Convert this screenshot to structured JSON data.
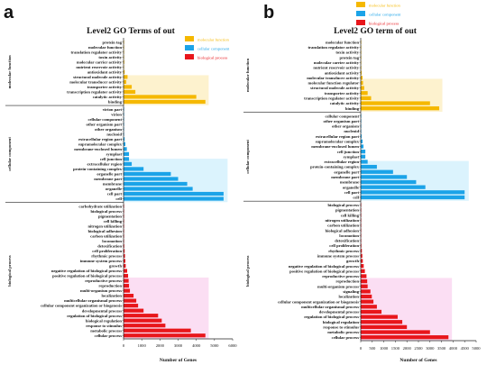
{
  "figure": {
    "panel_labels": [
      "a",
      "b"
    ]
  },
  "chart_data": [
    {
      "type": "bar",
      "orientation": "horizontal",
      "title": "Level2 GO Terms of out",
      "xlabel": "Number of Genes",
      "xlim": [
        0,
        6000
      ],
      "xticks": [
        0,
        1000,
        2000,
        3000,
        4000,
        5000,
        6000
      ],
      "legend": {
        "placement": "top-right"
      },
      "series_colors": {
        "molecular function": "#f5b800",
        "cellular component": "#1ba3e8",
        "biological process": "#e8161b"
      },
      "groups": [
        {
          "name": "molecular function",
          "label": "molecular function",
          "color": "#f5b800",
          "highlight": "#fbe7a6",
          "categories": [
            "protein tag",
            "molecular function",
            "translation regulator activity",
            "toxin activity",
            "molecular carrier activity",
            "nutrient reservoir activity",
            "antioxidant activity",
            "structural molecule activity",
            "molecular transducer activity",
            "transporter activity",
            "transcription regulator activity",
            "catalytic activity",
            "binding"
          ],
          "values": [
            5,
            10,
            15,
            20,
            40,
            25,
            60,
            220,
            150,
            450,
            650,
            4000,
            4500
          ]
        },
        {
          "name": "cellular component",
          "label": "cellular component",
          "color": "#1ba3e8",
          "highlight": "#bde9fb",
          "categories": [
            "virion part",
            "virion",
            "cellular component",
            "other organism part",
            "other organism",
            "nucleoid",
            "extracellular region part",
            "supramolecular complex",
            "membrane-enclosed lumen",
            "symplast",
            "cell junction",
            "extracellular region",
            "protein-containing complex",
            "organelle part",
            "membrane part",
            "membrane",
            "organelle",
            "cell part",
            "cell"
          ],
          "values": [
            5,
            8,
            10,
            10,
            12,
            20,
            60,
            100,
            180,
            300,
            300,
            450,
            1100,
            2600,
            3000,
            3500,
            3800,
            5500,
            5500
          ]
        },
        {
          "name": "biological process",
          "label": "biological process",
          "color": "#e8161b",
          "highlight": "#f8c2ea",
          "categories": [
            "carbohydrate utilization",
            "biological process",
            "pigmentation",
            "cell killing",
            "nitrogen utilization",
            "biological adhesion",
            "carbon utilization",
            "locomotion",
            "detoxification",
            "cell proliferation",
            "rhythmic process",
            "immune system process",
            "growth",
            "negative regulation of biological process",
            "positive regulation of biological process",
            "reproductive process",
            "reproduction",
            "multi-organism process",
            "localization",
            "multicellular organismal process",
            "cellular component organization or biogenesis",
            "developmental process",
            "regulation of biological process",
            "biological regulation",
            "response to stimulus",
            "metabolic process",
            "cellular process"
          ],
          "values": [
            3,
            5,
            10,
            10,
            12,
            15,
            15,
            25,
            40,
            60,
            80,
            100,
            120,
            200,
            250,
            280,
            300,
            350,
            550,
            700,
            800,
            1100,
            1900,
            2100,
            2300,
            3700,
            4500
          ]
        }
      ]
    },
    {
      "type": "bar",
      "orientation": "horizontal",
      "title": "Level2 GO term of out",
      "xlabel": "Number of Genes",
      "xlim": [
        0,
        5000
      ],
      "xticks": [
        0,
        500,
        1000,
        1500,
        2000,
        2500,
        3000,
        3500,
        4000,
        4500,
        5000
      ],
      "legend": {
        "placement": "top-right"
      },
      "series_colors": {
        "molecular function": "#f5b800",
        "cellular component": "#1ba3e8",
        "biological process": "#e8161b"
      },
      "groups": [
        {
          "name": "molecular function",
          "label": "molecular function",
          "color": "#f5b800",
          "highlight": "#fbe7a6",
          "categories": [
            "molecular function",
            "translation regulator activity",
            "toxin activity",
            "protein tag",
            "molecular carrier activity",
            "nutrient reservoir activity",
            "antioxidant activity",
            "molecular transducer activity",
            "molecular function regulator",
            "structural molecule activity",
            "transporter activity",
            "transcription regulator activity",
            "catalytic activity",
            "binding"
          ],
          "values": [
            5,
            8,
            10,
            10,
            20,
            25,
            40,
            80,
            100,
            150,
            300,
            450,
            3000,
            3400
          ]
        },
        {
          "name": "cellular component",
          "label": "cellular component",
          "color": "#1ba3e8",
          "highlight": "#bde9fb",
          "categories": [
            "cellular component",
            "other organism part",
            "other organism",
            "nucleoid",
            "extracellular region part",
            "supramolecular complex",
            "membrane-enclosed lumen",
            "cell junction",
            "symplast",
            "extracellular region",
            "protein-containing complex",
            "organelle part",
            "membrane part",
            "membrane",
            "organelle",
            "cell part",
            "cell"
          ],
          "values": [
            5,
            5,
            8,
            15,
            40,
            80,
            120,
            200,
            200,
            300,
            700,
            1400,
            2000,
            2400,
            2800,
            4500,
            4500
          ]
        },
        {
          "name": "biological process",
          "label": "biological process",
          "color": "#e8161b",
          "highlight": "#f8c2ea",
          "categories": [
            "biological process",
            "pigmentation",
            "cell killing",
            "nitrogen utilization",
            "carbon utilization",
            "biological adhesion",
            "locomotion",
            "detoxification",
            "cell proliferation",
            "rhythmic process",
            "immune system process",
            "growth",
            "negative regulation of biological process",
            "positive regulation of biological process",
            "reproductive process",
            "reproduction",
            "multi-organism process",
            "signaling",
            "localization",
            "cellular component organization or biogenesis",
            "multicellular organismal process",
            "developmental process",
            "regulation of biological process",
            "biological regulation",
            "response to stimulus",
            "metabolic process",
            "cellular process"
          ],
          "values": [
            3,
            5,
            8,
            8,
            10,
            10,
            15,
            20,
            30,
            50,
            70,
            90,
            130,
            180,
            250,
            280,
            300,
            420,
            480,
            550,
            700,
            900,
            1600,
            1800,
            2000,
            3000,
            3800
          ]
        }
      ]
    }
  ]
}
